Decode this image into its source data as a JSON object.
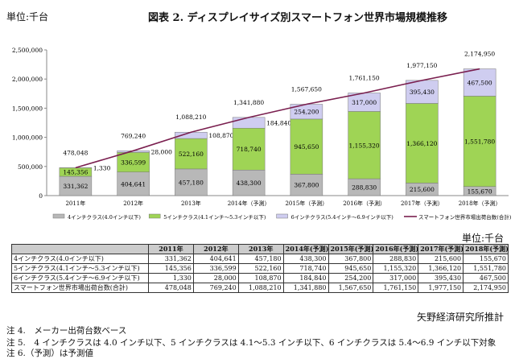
{
  "unit_top": "単位:千台",
  "title": "図表 2. ディスプレイサイズ別スマートフォン世界市場規模推移",
  "chart_data": {
    "type": "bar",
    "stacked": true,
    "categories": [
      "2011年",
      "2012年",
      "2013年",
      "2014年（予測）",
      "2015年（予測）",
      "2016年（予測）",
      "2017年（予測）",
      "2018年（予測）"
    ],
    "series": [
      {
        "name": "4インチクラス(4.0インチ以下)",
        "color": "#b8b8b8",
        "values": [
          331362,
          404641,
          457180,
          438300,
          367800,
          288830,
          215600,
          155670
        ]
      },
      {
        "name": "5インチクラス(4.1インチ～5.3インチ以下)",
        "color": "#9fd455",
        "values": [
          145356,
          336599,
          522160,
          718740,
          945650,
          1155320,
          1366120,
          1551780
        ]
      },
      {
        "name": "6インチクラス(5.4インチ～6.9インチ以下)",
        "color": "#cfcdf0",
        "values": [
          1330,
          28000,
          108870,
          184840,
          254200,
          317000,
          395430,
          467500
        ]
      },
      {
        "name": "スマートフォン世界市場出荷台数(合計)",
        "type": "line",
        "color": "#7a1f4f",
        "values": [
          478048,
          769240,
          1088210,
          1341880,
          1567650,
          1761150,
          1977150,
          2174950
        ]
      }
    ],
    "yticks": [
      "0",
      "500,000",
      "1,000,000",
      "1,500,000",
      "2,000,000",
      "2,500,000"
    ],
    "ylim": [
      0,
      2500000
    ],
    "legend": "bottom"
  },
  "table": {
    "unit": "単位:千台",
    "headers": [
      "",
      "2011年",
      "2012年",
      "2013年",
      "2014年(予測)",
      "2015年(予測)",
      "2016年(予測)",
      "2017年(予測)",
      "2018年(予測)"
    ],
    "rows": [
      [
        "4インチクラス(4.0インチ以下)",
        "331,362",
        "404,641",
        "457,180",
        "438,300",
        "367,800",
        "288,830",
        "215,600",
        "155,670"
      ],
      [
        "5インチクラス(4.1インチ～5.3インチ以下)",
        "145,356",
        "336,599",
        "522,160",
        "718,740",
        "945,650",
        "1,155,320",
        "1,366,120",
        "1,551,780"
      ],
      [
        "6インチクラス(5.4インチ～6.9インチ以下)",
        "1,330",
        "28,000",
        "108,870",
        "184,840",
        "254,200",
        "317,000",
        "395,430",
        "467,500"
      ],
      [
        "スマートフォン世界市場出荷台数(合計)",
        "478,048",
        "769,240",
        "1,088,210",
        "1,341,880",
        "1,567,650",
        "1,761,150",
        "1,977,150",
        "2,174,950"
      ]
    ]
  },
  "source": "矢野経済研究所推計",
  "notes": [
    "注 4.　メーカー出荷台数ベース",
    "注 5.　4 インチクラスは 4.0 インチ以下、5 インチクラスは 4.1～5.3 インチ以下、6 インチクラスは 5.4～6.9 インチ以下対象",
    "注 6.（予測）は予測値"
  ]
}
